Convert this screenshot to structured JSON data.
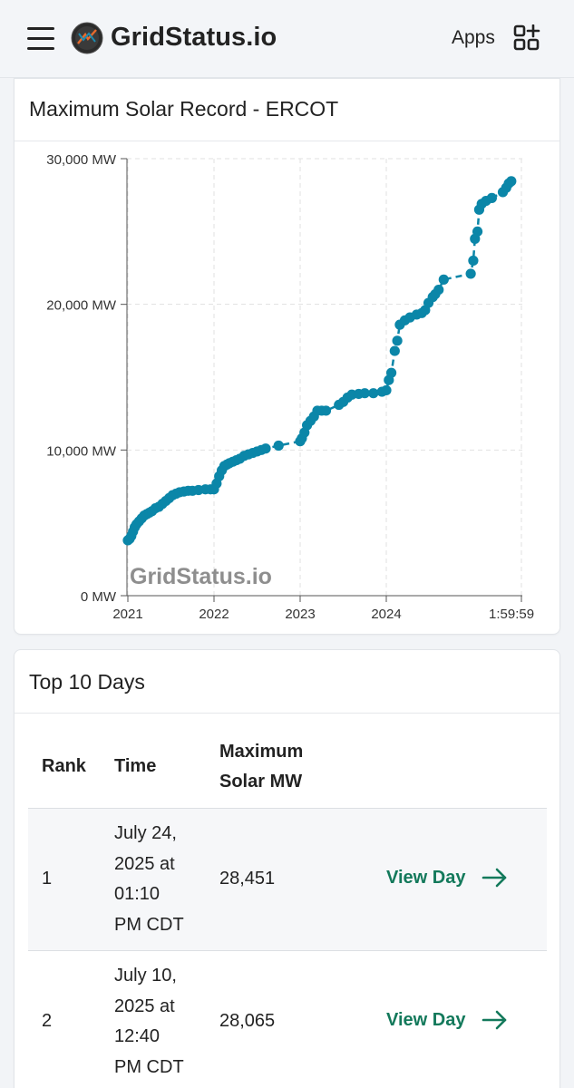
{
  "header": {
    "brand": "GridStatus.io",
    "apps_label": "Apps",
    "icons": {
      "menu": "hamburger-menu-icon",
      "logo": "gridstatus-logo-icon",
      "apps": "apps-grid-plus-icon"
    }
  },
  "chart_card": {
    "title": "Maximum Solar Record - ERCOT",
    "watermark": "GridStatus.io"
  },
  "chart_data": {
    "type": "line",
    "title": "Maximum Solar Record - ERCOT",
    "xlabel": "",
    "ylabel": "",
    "x_tick_labels": [
      "2021",
      "2022",
      "2023",
      "2024",
      "1:59:59"
    ],
    "y_tick_labels": [
      "0 MW",
      "10,000 MW",
      "20,000 MW",
      "30,000 MW"
    ],
    "y_ticks": [
      0,
      10000,
      20000,
      30000
    ],
    "ylim": [
      0,
      30000
    ],
    "xlim": [
      2021.0,
      2025.6
    ],
    "grid": true,
    "line_style": "dashed",
    "color": "#0b86a8",
    "series": [
      {
        "name": "Maximum Solar MW",
        "x": [
          2021.0,
          2021.02,
          2021.04,
          2021.06,
          2021.08,
          2021.1,
          2021.13,
          2021.16,
          2021.19,
          2021.22,
          2021.25,
          2021.28,
          2021.32,
          2021.36,
          2021.4,
          2021.44,
          2021.48,
          2021.52,
          2021.56,
          2021.6,
          2021.65,
          2021.7,
          2021.75,
          2021.82,
          2021.9,
          2021.96,
          2022.0,
          2022.03,
          2022.06,
          2022.09,
          2022.12,
          2022.15,
          2022.18,
          2022.22,
          2022.26,
          2022.3,
          2022.35,
          2022.4,
          2022.45,
          2022.5,
          2022.55,
          2022.6,
          2022.75,
          2023.0,
          2023.02,
          2023.05,
          2023.08,
          2023.12,
          2023.16,
          2023.2,
          2023.25,
          2023.3,
          2023.45,
          2023.5,
          2023.55,
          2023.6,
          2023.68,
          2023.75,
          2023.85,
          2023.95,
          2024.0,
          2024.03,
          2024.06,
          2024.1,
          2024.13,
          2024.16,
          2024.22,
          2024.28,
          2024.36,
          2024.42,
          2024.46,
          2024.5,
          2024.55,
          2024.58,
          2024.62,
          2024.68,
          2025.0,
          2025.03,
          2025.05,
          2025.08,
          2025.1,
          2025.13,
          2025.18,
          2025.25,
          2025.38,
          2025.42,
          2025.45,
          2025.48
        ],
        "values": [
          3800,
          3900,
          4100,
          4400,
          4700,
          4900,
          5100,
          5300,
          5500,
          5600,
          5700,
          5800,
          6000,
          6100,
          6300,
          6500,
          6700,
          6900,
          7000,
          7100,
          7150,
          7200,
          7200,
          7250,
          7300,
          7300,
          7300,
          7700,
          8200,
          8600,
          8900,
          9000,
          9100,
          9200,
          9300,
          9400,
          9600,
          9700,
          9800,
          9900,
          10000,
          10100,
          10300,
          10600,
          10800,
          11200,
          11700,
          12000,
          12300,
          12700,
          12700,
          12700,
          13100,
          13300,
          13600,
          13800,
          13850,
          13900,
          13900,
          14000,
          14100,
          14800,
          15300,
          16800,
          17500,
          18600,
          18900,
          19100,
          19300,
          19400,
          19600,
          20100,
          20500,
          20700,
          21000,
          21700,
          22100,
          23000,
          24500,
          25000,
          26500,
          26900,
          27100,
          27300,
          27700,
          28000,
          28300,
          28451
        ]
      }
    ]
  },
  "table_card": {
    "title": "Top 10 Days",
    "columns": [
      "Rank",
      "Time",
      "Maximum Solar MW"
    ],
    "rows": [
      {
        "rank": "1",
        "time_lines": [
          "July 24,",
          "2025 at",
          "01:10",
          "PM CDT"
        ],
        "mw": "28,451",
        "action": "View Day"
      },
      {
        "rank": "2",
        "time_lines": [
          "July 10,",
          "2025 at",
          "12:40",
          "PM CDT"
        ],
        "mw": "28,065",
        "action": "View Day"
      }
    ]
  }
}
